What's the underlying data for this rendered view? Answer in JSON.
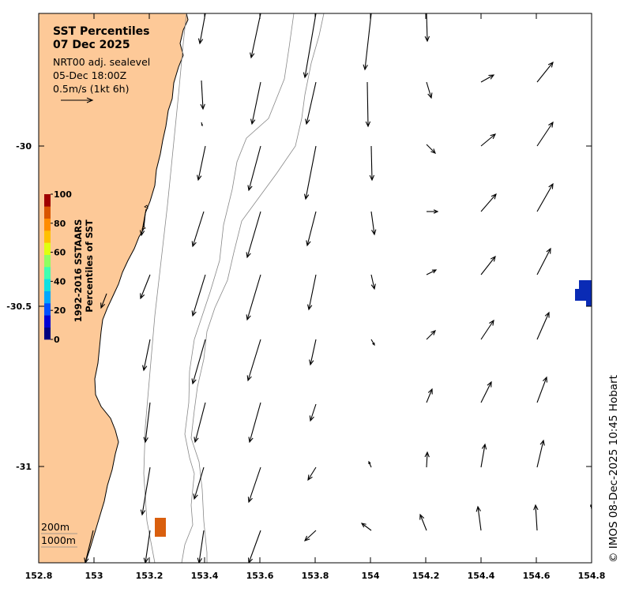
{
  "title": {
    "line1": "SST Percentiles",
    "line2": "07 Dec 2025"
  },
  "info": {
    "model": "NRT00 adj. sealevel",
    "time": "05-Dec 18:00Z",
    "scale": "0.5m/s (1kt 6h)"
  },
  "x_axis": {
    "ticks": [
      {
        "value": 152.8,
        "label": "152.8"
      },
      {
        "value": 153,
        "label": "153"
      },
      {
        "value": 153.2,
        "label": "153.2"
      },
      {
        "value": 153.4,
        "label": "153.4"
      },
      {
        "value": 153.6,
        "label": "153.6"
      },
      {
        "value": 153.8,
        "label": "153.8"
      },
      {
        "value": 154,
        "label": "154"
      },
      {
        "value": 154.2,
        "label": "154.2"
      },
      {
        "value": 154.4,
        "label": "154.4"
      },
      {
        "value": 154.6,
        "label": "154.6"
      },
      {
        "value": 154.8,
        "label": "154.8"
      }
    ]
  },
  "y_axis": {
    "ticks": [
      {
        "value": -30,
        "label": "-30"
      },
      {
        "value": -30.5,
        "label": "-30.5"
      },
      {
        "value": -31,
        "label": "-31"
      }
    ]
  },
  "colorbar": {
    "title1": "1992-2016 SSTAARS",
    "title2": "Percentiles of SST",
    "tick_labels": [
      "100",
      "80",
      "60",
      "40",
      "20",
      "0"
    ],
    "colors": [
      "#00007f",
      "#0000d4",
      "#0050ff",
      "#00a8ff",
      "#10e0e0",
      "#40ffb0",
      "#90ff60",
      "#e0ff10",
      "#ffc000",
      "#ff8c00",
      "#d95500",
      "#a00000"
    ]
  },
  "depth_legend": {
    "shallow": "200m",
    "deep": "1000m"
  },
  "credit": "© IMOS 08-Dec-2025 10:45 Hobart",
  "colors": {
    "land": "#fdc998",
    "sst_warm": "#d95f0e",
    "sst_cold": "#0a2bb5"
  }
}
